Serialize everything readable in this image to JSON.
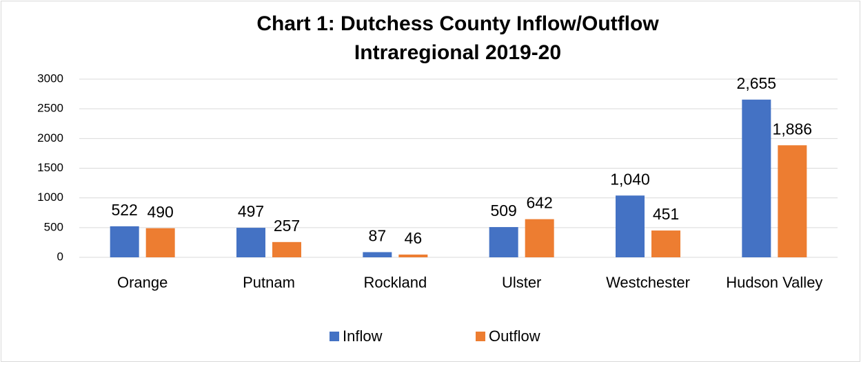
{
  "chart_data": {
    "type": "bar",
    "title": [
      "Chart 1: Dutchess County Inflow/Outflow",
      "Intraregional 2019-20"
    ],
    "categories": [
      "Orange",
      "Putnam",
      "Rockland",
      "Ulster",
      "Westchester",
      "Hudson Valley"
    ],
    "series": [
      {
        "name": "Inflow",
        "color": "#4472c4",
        "values": [
          522,
          497,
          87,
          509,
          1040,
          2655
        ],
        "value_labels": [
          "522",
          "497",
          "87",
          "509",
          "1,040",
          "2,655"
        ]
      },
      {
        "name": "Outflow",
        "color": "#ed7d31",
        "values": [
          490,
          257,
          46,
          642,
          451,
          1886
        ],
        "value_labels": [
          "490",
          "257",
          "46",
          "642",
          "451",
          "1,886"
        ]
      }
    ],
    "ylim": [
      0,
      3000
    ],
    "yticks": [
      0,
      500,
      1000,
      1500,
      2000,
      2500,
      3000
    ],
    "grid": true,
    "legend": "bottom"
  }
}
